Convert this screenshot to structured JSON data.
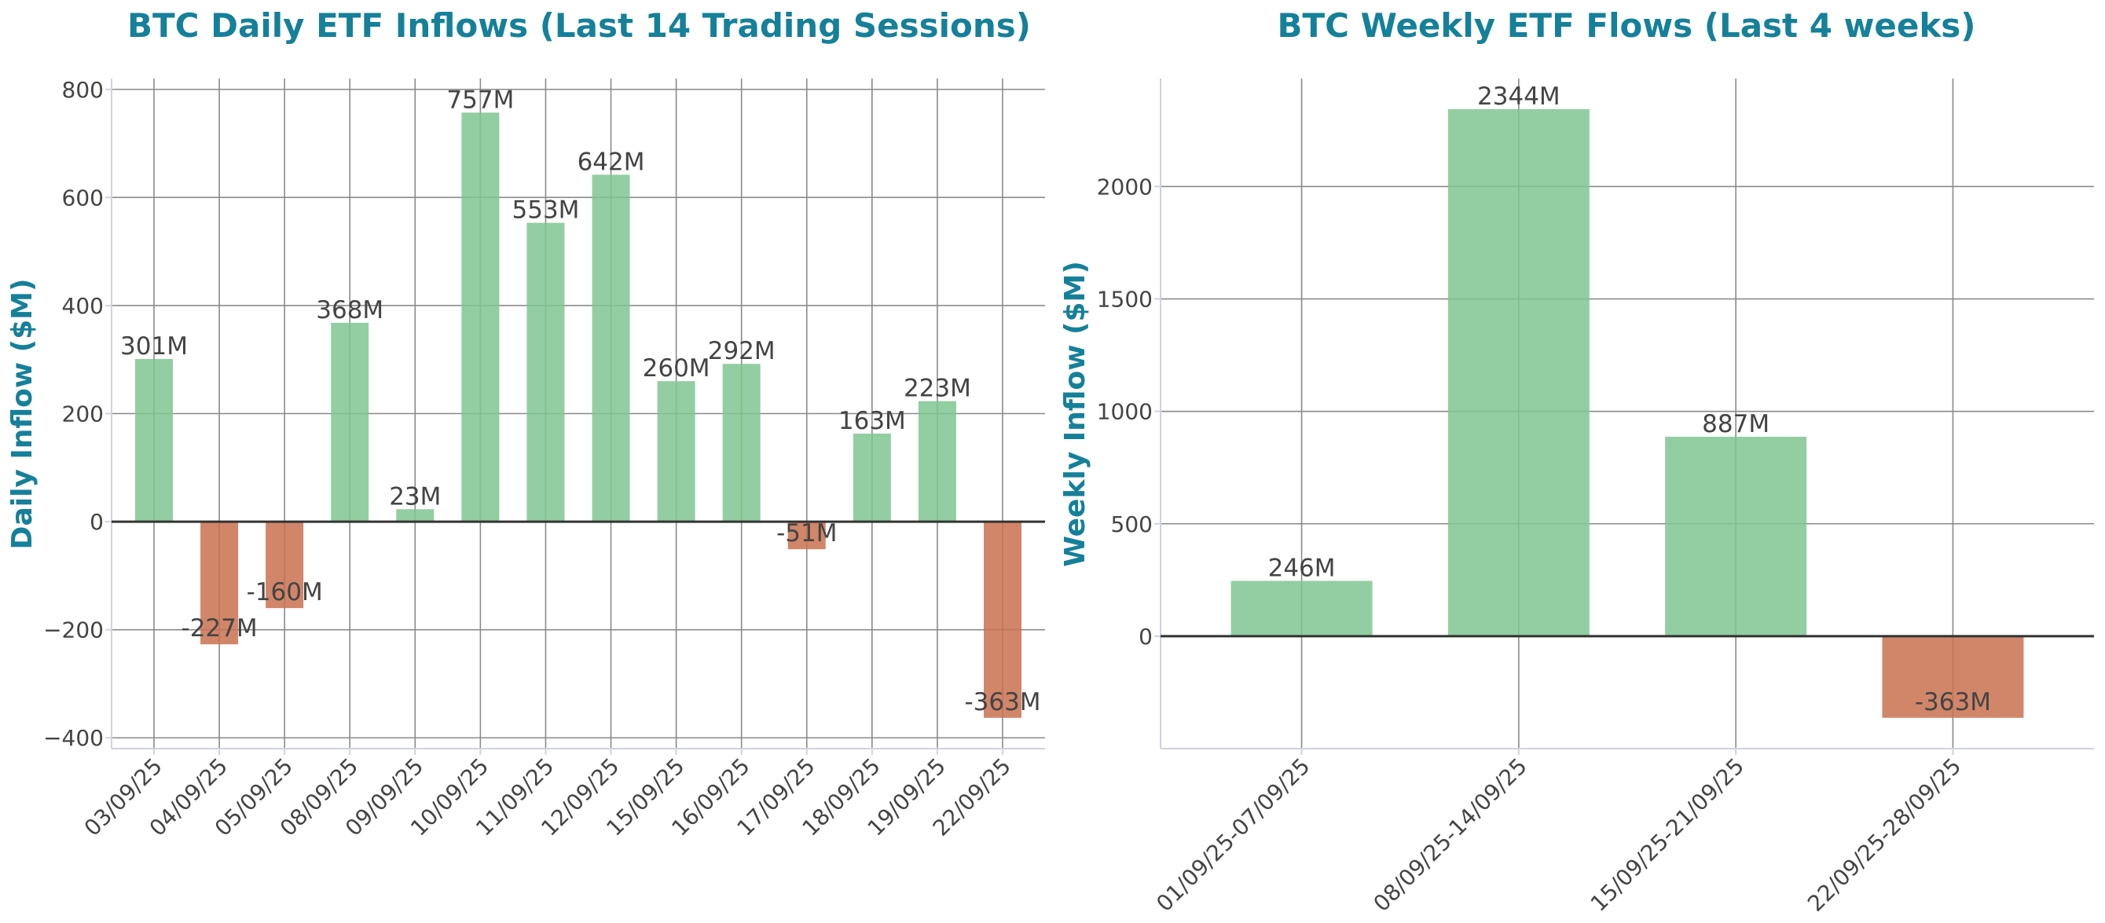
{
  "colors": {
    "title": "#15809a",
    "positive": "#7fc590",
    "negative": "#c9714f",
    "text": "#444444",
    "grid": "#8a8a8a"
  },
  "chart_data": [
    {
      "type": "bar",
      "title": "BTC Daily ETF Inflows (Last 14 Trading Sessions)",
      "xlabel": "",
      "ylabel": "Daily Inflow ($M)",
      "categories": [
        "03/09/25",
        "04/09/25",
        "05/09/25",
        "08/09/25",
        "09/09/25",
        "10/09/25",
        "11/09/25",
        "12/09/25",
        "15/09/25",
        "16/09/25",
        "17/09/25",
        "18/09/25",
        "19/09/25",
        "22/09/25"
      ],
      "values": [
        301,
        -227,
        -160,
        368,
        23,
        757,
        553,
        642,
        260,
        292,
        -51,
        163,
        223,
        -363
      ],
      "data_labels": [
        "301M",
        "-227M",
        "-160M",
        "368M",
        "23M",
        "757M",
        "553M",
        "642M",
        "260M",
        "292M",
        "-51M",
        "163M",
        "223M",
        "-363M"
      ],
      "ylim": [
        -420,
        820
      ],
      "yticks": [
        -400,
        -200,
        0,
        200,
        400,
        600,
        800
      ],
      "ytick_labels": [
        "−400",
        "−200",
        "0",
        "200",
        "400",
        "600",
        "800"
      ],
      "grid": true
    },
    {
      "type": "bar",
      "title": "BTC Weekly ETF Flows (Last 4 weeks)",
      "xlabel": "",
      "ylabel": "Weekly Inflow ($M)",
      "categories": [
        "01/09/25-07/09/25",
        "08/09/25-14/09/25",
        "15/09/25-21/09/25",
        "22/09/25-28/09/25"
      ],
      "values": [
        246,
        2344,
        887,
        -363
      ],
      "data_labels": [
        "246M",
        "2344M",
        "887M",
        "-363M"
      ],
      "ylim": [
        -500,
        2480
      ],
      "yticks": [
        0,
        500,
        1000,
        1500,
        2000
      ],
      "ytick_labels": [
        "0",
        "500",
        "1000",
        "1500",
        "2000"
      ],
      "grid": true
    }
  ]
}
